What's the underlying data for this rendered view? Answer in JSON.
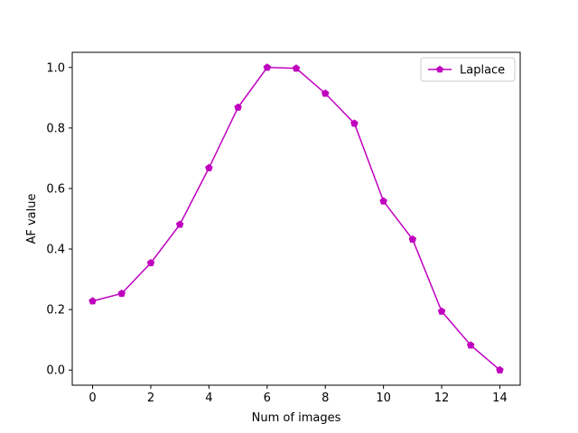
{
  "chart_data": {
    "type": "line",
    "title": "",
    "xlabel": "Num of images",
    "ylabel": "AF value",
    "xlim": [
      -0.7,
      14.7
    ],
    "ylim": [
      -0.05,
      1.05
    ],
    "xticks": [
      0,
      2,
      4,
      6,
      8,
      10,
      12,
      14
    ],
    "xtick_labels": [
      "0",
      "2",
      "4",
      "6",
      "8",
      "10",
      "12",
      "14"
    ],
    "yticks": [
      0.0,
      0.2,
      0.4,
      0.6,
      0.8,
      1.0
    ],
    "ytick_labels": [
      "0.0",
      "0.2",
      "0.4",
      "0.6",
      "0.8",
      "1.0"
    ],
    "grid": false,
    "legend": "top-right",
    "series": [
      {
        "name": "Laplace",
        "color": "#bf00bf",
        "marker": "pentagon",
        "x": [
          0,
          1,
          2,
          3,
          4,
          5,
          6,
          7,
          8,
          9,
          10,
          11,
          12,
          13,
          14
        ],
        "values": [
          0.228,
          0.253,
          0.354,
          0.481,
          0.668,
          0.868,
          1.0,
          0.997,
          0.914,
          0.815,
          0.558,
          0.432,
          0.194,
          0.082,
          0.0
        ]
      }
    ]
  }
}
